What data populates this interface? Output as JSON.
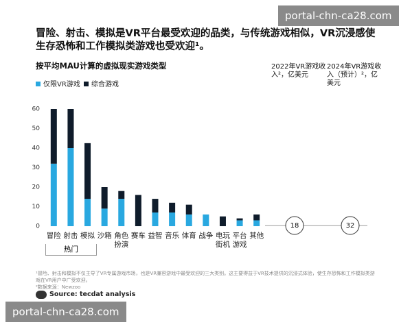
{
  "chart_data": {
    "type": "bar",
    "stacked": true,
    "title": "冒险、射击、模拟是VR平台最受欢迎的品类，与传统游戏相似，VR沉浸感使生存恐怖和工作模拟类游戏也受欢迎¹。",
    "subtitle": "按平均MAU计算的虚拟现实游戏类型",
    "categories": [
      "冒险",
      "射击",
      "模拟",
      "沙箱",
      "角色扮演",
      "赛车",
      "益智",
      "音乐",
      "体育",
      "战争",
      "电玩街机",
      "平台游戏",
      "其他"
    ],
    "series": [
      {
        "name": "仅限VR游戏",
        "color": "#29a8e0",
        "values": [
          32,
          40,
          14,
          9,
          14,
          0,
          7,
          7,
          6,
          6,
          0,
          3,
          3
        ]
      },
      {
        "name": "综合游戏",
        "color": "#0f1c2b",
        "values": [
          28,
          20,
          28.5,
          11,
          4,
          16,
          7,
          5,
          5,
          0,
          5,
          1,
          3
        ]
      }
    ],
    "ylim": [
      0,
      60
    ],
    "yticks": [
      0,
      10,
      20,
      30,
      40,
      50,
      60
    ],
    "grid": false,
    "group_label": "热门",
    "revenue_columns": [
      {
        "label": "2022年VR游戏收入²，亿美元",
        "value": 18
      },
      {
        "label": "2024年VR游戏收入（预计）²，亿美元",
        "value": 32
      }
    ],
    "footnotes": [
      "¹冒险、射击和模拟不仅主导了VR专属游戏市场，也是VR兼容游戏中最受欢迎的三大类别。这主要得益于VR技术提供的沉浸式体验，使生存恐怖和工作模拟类游戏在VR用户中广受欢迎。",
      "²数据来源：Newzoo"
    ],
    "source": "Source: tecdat analysis"
  },
  "watermark": "portal-chn-ca28.com"
}
